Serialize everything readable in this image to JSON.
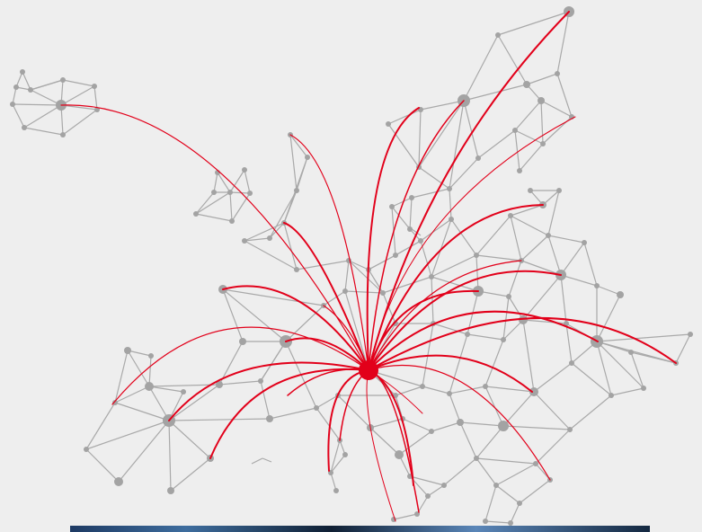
{
  "colors": {
    "background": "#eeeeee",
    "mesh_edge": "#a9a9a9",
    "node": "#a3a3a3",
    "arc": "#e2001a",
    "hub": "#e2001a"
  },
  "hub": {
    "name": "central-hub-node"
  },
  "photo_strip": {
    "name": "photo-strip"
  }
}
